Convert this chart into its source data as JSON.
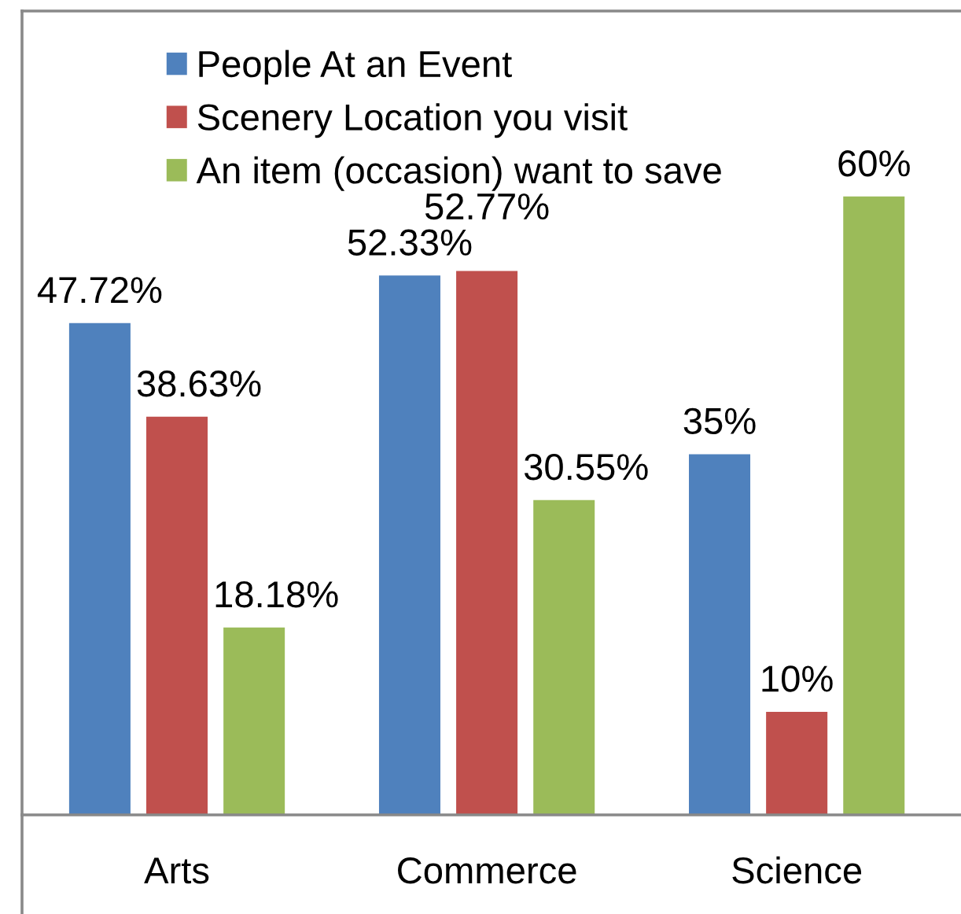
{
  "chart_data": {
    "type": "bar",
    "categories": [
      "Arts",
      "Commerce",
      "Science"
    ],
    "series": [
      {
        "name": "People At an Event",
        "color": "#4f81bd",
        "values": [
          47.72,
          52.33,
          35
        ],
        "value_labels": [
          "47.72%",
          "52.33%",
          "35%"
        ]
      },
      {
        "name": "Scenery Location you visit",
        "color": "#c0504d",
        "values": [
          38.63,
          52.77,
          10
        ],
        "value_labels": [
          "38.63%",
          "52.77%",
          "10%"
        ]
      },
      {
        "name": "An item (occasion) want to save",
        "color": "#9bbb59",
        "values": [
          18.18,
          30.55,
          60
        ],
        "value_labels": [
          "18.18%",
          "30.55%",
          "60%"
        ]
      }
    ],
    "ylim": [
      0,
      78
    ],
    "tick_labels": "x",
    "legend": "top"
  }
}
